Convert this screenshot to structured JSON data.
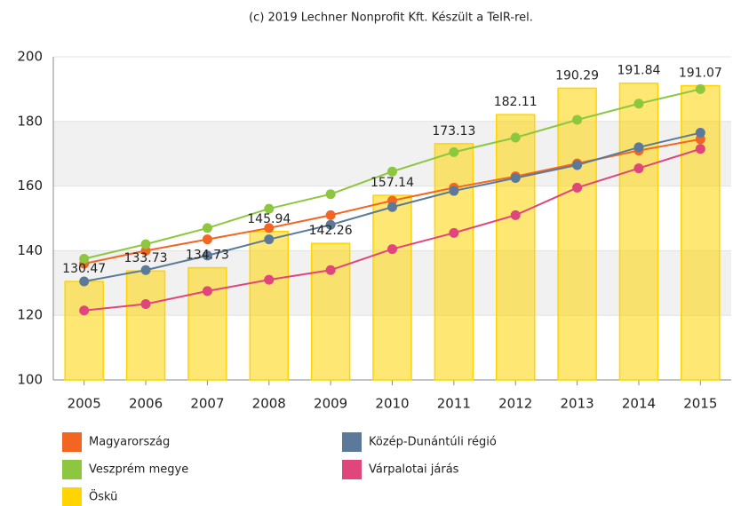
{
  "chart_data": {
    "type": "combo",
    "title": "(c) 2019 Lechner Nonprofit Kft. Készült a TeIR-rel.",
    "categories": [
      "2005",
      "2006",
      "2007",
      "2008",
      "2009",
      "2010",
      "2011",
      "2012",
      "2013",
      "2014",
      "2015"
    ],
    "ylim": [
      100,
      200
    ],
    "yticks": [
      100,
      120,
      140,
      160,
      180,
      200
    ],
    "grid": true,
    "legend": "bottom",
    "series": [
      {
        "name": "Magyarország",
        "type": "line",
        "color": "#f26522",
        "values": [
          136,
          140,
          143.5,
          147,
          151,
          155.5,
          159.5,
          163,
          167,
          171,
          174.5
        ]
      },
      {
        "name": "Közép-Dunántúli régió",
        "type": "line",
        "color": "#5b7a9a",
        "values": [
          130.5,
          134,
          138.5,
          143.5,
          148,
          153.5,
          158.5,
          162.5,
          166.5,
          172,
          176.5
        ]
      },
      {
        "name": "Veszprém megye",
        "type": "line",
        "color": "#8dc63f",
        "values": [
          137.5,
          142,
          147,
          153,
          157.5,
          164.5,
          170.5,
          175,
          180.5,
          185.5,
          190
        ]
      },
      {
        "name": "Várpalotai járás",
        "type": "line",
        "color": "#e0457b",
        "values": [
          121.5,
          123.5,
          127.5,
          131,
          134,
          140.5,
          145.5,
          151,
          159.5,
          165.5,
          171.5
        ]
      },
      {
        "name": "Öskü",
        "type": "bar",
        "color": "#ffd400",
        "values": [
          130.47,
          133.73,
          134.73,
          145.94,
          142.26,
          157.14,
          173.13,
          182.11,
          190.29,
          191.84,
          191.07
        ]
      }
    ]
  }
}
